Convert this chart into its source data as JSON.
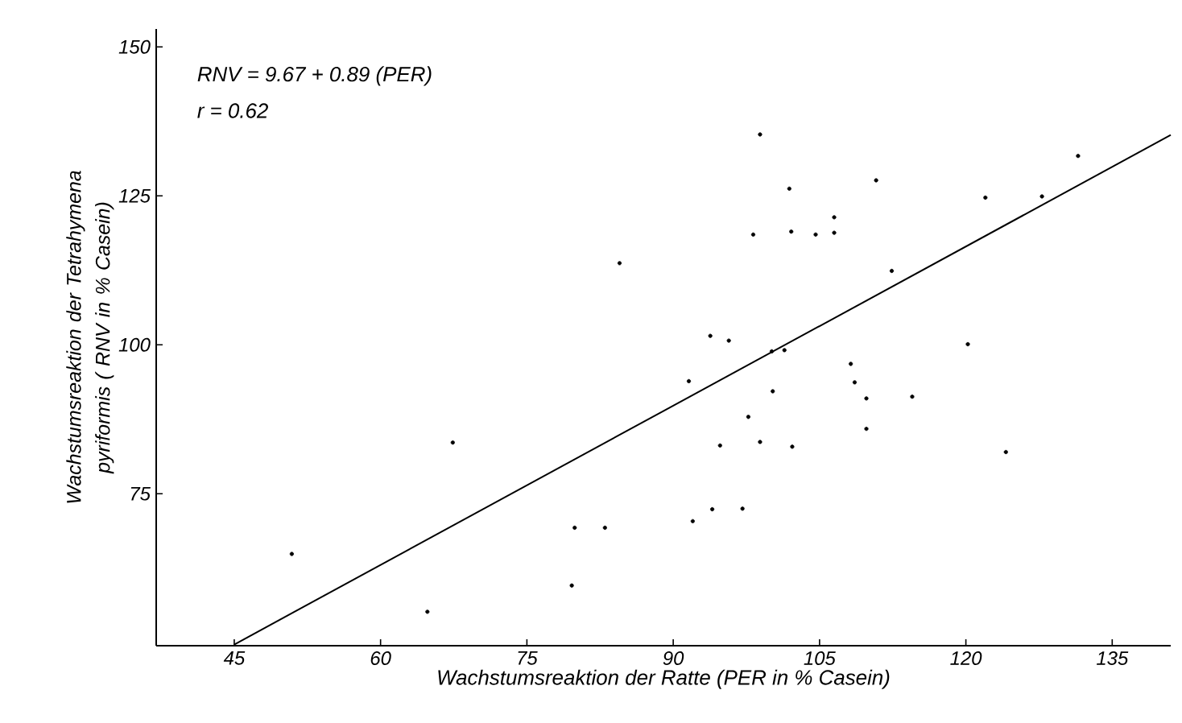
{
  "chart_data": {
    "type": "scatter",
    "xlabel": "Wachstumsreaktion der Ratte   (PER in % Casein)",
    "ylabel": "Wachstumsreaktion der Tetrahymena pyriformis ( RNV in % Casein)",
    "annotations": [
      "RNV = 9.67 + 0.89 (PER)",
      "r = 0.62"
    ],
    "xlim": [
      37,
      141
    ],
    "ylim": [
      49.5,
      153
    ],
    "xticks": [
      45,
      60,
      75,
      90,
      105,
      120,
      135
    ],
    "yticks": [
      75,
      100,
      125,
      150
    ],
    "grid": false,
    "series": [
      {
        "color": "#000000",
        "x": [
          84.5,
          67.4,
          50.9,
          64.8,
          79.9,
          83.0,
          79.6,
          98.9,
          101.9,
          110.8,
          98.2,
          102.1,
          104.6,
          106.5,
          106.5,
          112.4,
          122.0,
          127.8,
          131.5,
          93.8,
          95.7,
          100.1,
          101.4,
          91.6,
          100.2,
          97.7,
          94.8,
          98.9,
          102.2,
          108.2,
          108.6,
          109.8,
          109.8,
          120.2,
          124.1,
          114.5,
          92.0,
          94.0,
          97.1
        ],
        "values": [
          113.7,
          83.6,
          64.9,
          55.2,
          69.3,
          69.3,
          59.6,
          135.3,
          126.2,
          127.6,
          118.5,
          119.0,
          118.5,
          121.4,
          118.8,
          112.4,
          124.7,
          124.9,
          131.7,
          101.5,
          100.7,
          98.9,
          99.1,
          93.9,
          92.2,
          87.9,
          83.1,
          83.7,
          82.9,
          96.8,
          93.7,
          91.0,
          85.9,
          100.1,
          82.0,
          91.3,
          70.4,
          72.4,
          72.5
        ]
      },
      {
        "type": "line",
        "color": "#000000",
        "marker": "none",
        "line_style": "solid",
        "x": [
          45,
          141
        ],
        "values": [
          49.7,
          135.2
        ]
      }
    ]
  }
}
